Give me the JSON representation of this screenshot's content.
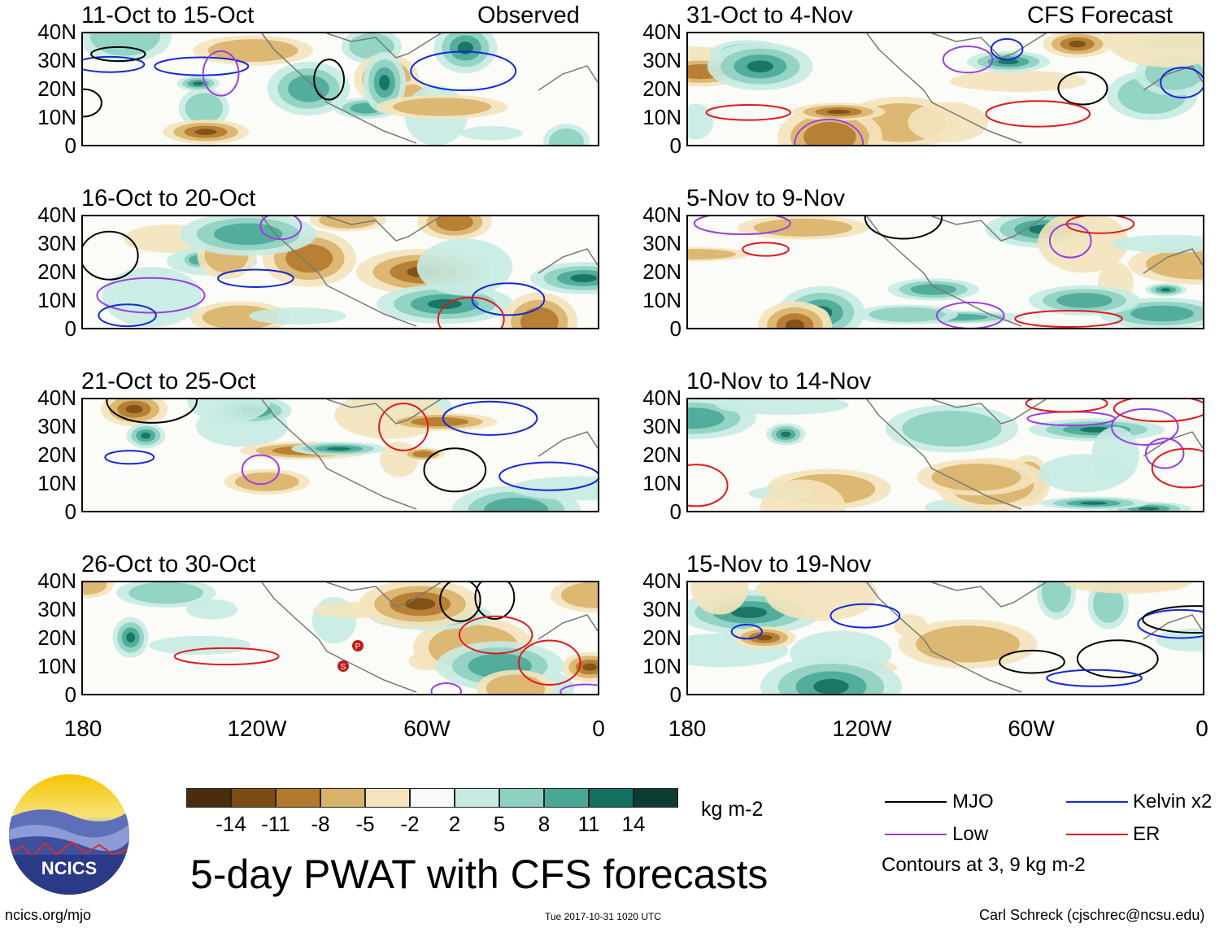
{
  "panels": [
    {
      "title": "11-Oct to 15-Oct",
      "label": "Observed"
    },
    {
      "title": "16-Oct to 20-Oct",
      "label": ""
    },
    {
      "title": "21-Oct to 25-Oct",
      "label": ""
    },
    {
      "title": "26-Oct to 30-Oct",
      "label": ""
    },
    {
      "title": "31-Oct to 4-Nov",
      "label": "CFS Forecast"
    },
    {
      "title": "5-Nov to 9-Nov",
      "label": ""
    },
    {
      "title": "10-Nov to 14-Nov",
      "label": ""
    },
    {
      "title": "15-Nov to 19-Nov",
      "label": ""
    }
  ],
  "lat_labels": [
    "40N",
    "30N",
    "20N",
    "10N",
    "0"
  ],
  "lon_labels": [
    "180",
    "120W",
    "60W",
    "0"
  ],
  "colorbar": {
    "ticks": [
      "-14",
      "-11",
      "-8",
      "-5",
      "-2",
      "2",
      "5",
      "8",
      "11",
      "14"
    ],
    "colors": [
      "#4a2c0e",
      "#7d4c14",
      "#b27a2d",
      "#d9b26a",
      "#f4e3bd",
      "#fafafa",
      "#c7ebe3",
      "#8ed0c1",
      "#4aa898",
      "#14705f",
      "#0b3d33"
    ],
    "units": "kg m-2"
  },
  "legend": {
    "items": [
      {
        "label": "MJO",
        "color": "#000000"
      },
      {
        "label": "Kelvin x2",
        "color": "#1428d8"
      },
      {
        "label": "Low",
        "color": "#9a3fe0"
      },
      {
        "label": "ER",
        "color": "#e01a1a"
      }
    ],
    "note": "Contours at 3, 9 kg m-2"
  },
  "logo_text": "NCICS",
  "main_title": "5-day PWAT with CFS forecasts",
  "footer": {
    "left": "ncics.org/mjo",
    "center": "Tue 2017-10-31 1020 UTC",
    "right": "Carl Schreck (cjschrec@ncsu.edu)"
  },
  "storm_markers": [
    "P",
    "S"
  ]
}
